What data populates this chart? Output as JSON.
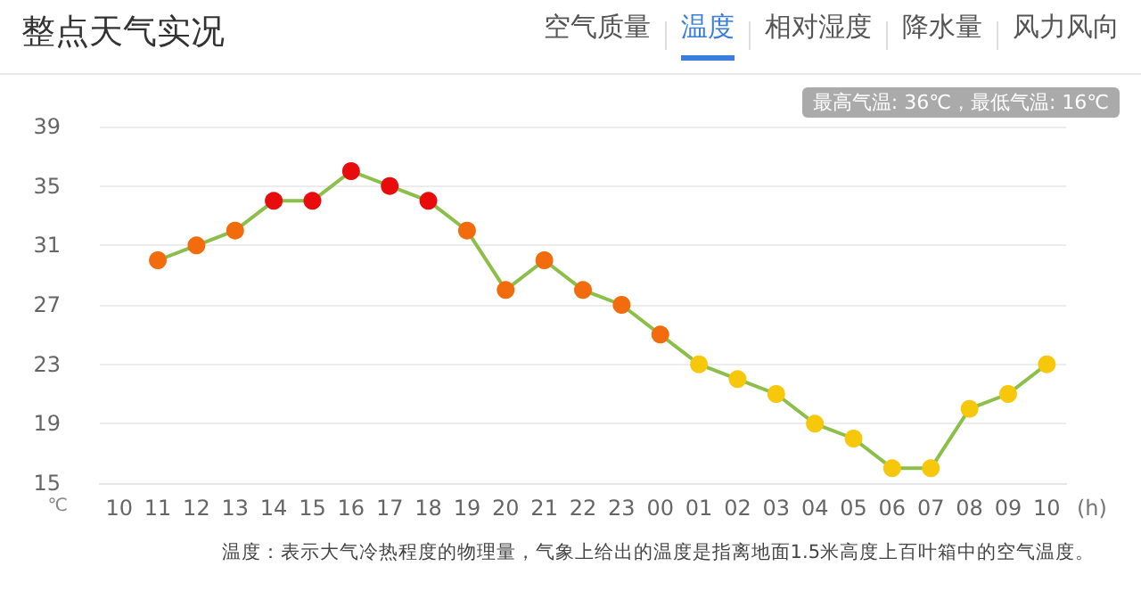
{
  "chart_data": {
    "type": "line",
    "title": "整点天气实况",
    "annotations": [
      "空气质量",
      "温度",
      "相对湿度",
      "降水量",
      "风力风向",
      "最高气温: 36℃，最低气温: 16℃",
      "温度：表示大气冷热程度的物理量，气象上给出的温度是指离地面1.5米高度上百叶箱中的空气温度。"
    ],
    "xlabel": "(h)",
    "ylabel": "℃",
    "categories": [
      "10",
      "11",
      "12",
      "13",
      "14",
      "15",
      "16",
      "17",
      "18",
      "19",
      "20",
      "21",
      "22",
      "23",
      "00",
      "01",
      "02",
      "03",
      "04",
      "05",
      "06",
      "07",
      "08",
      "09",
      "10"
    ],
    "series": [
      {
        "color": "#8bbf4a",
        "colors": [
          null,
          "#f26b0c",
          "#f26b0c",
          "#f26b0c",
          "#e80c0c",
          "#e80c0c",
          "#e80c0c",
          "#e80c0c",
          "#e80c0c",
          "#f26b0c",
          "#f26b0c",
          "#f26b0c",
          "#f26b0c",
          "#f26b0c",
          "#f26b0c",
          "#f7c70c",
          "#f7c70c",
          "#f7c70c",
          "#f7c70c",
          "#f7c70c",
          "#f7c70c",
          "#f7c70c",
          "#f7c70c",
          "#f7c70c",
          "#f7c70c"
        ],
        "values": [
          null,
          30,
          31,
          32,
          34,
          34,
          36,
          35,
          34,
          32,
          28,
          30,
          28,
          27,
          25,
          23,
          22,
          21,
          19,
          18,
          16,
          16,
          20,
          21,
          23
        ]
      }
    ],
    "ylim": [
      15,
      39
    ],
    "yticks": [
      15,
      19,
      23,
      27,
      31,
      35,
      39
    ],
    "grid": "y",
    "marker": "circle",
    "line_style": "solid"
  }
}
